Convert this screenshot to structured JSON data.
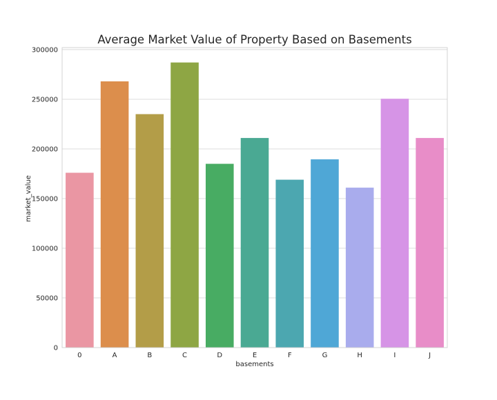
{
  "chart_data": {
    "type": "bar",
    "title": "Average Market Value of Property Based on Basements",
    "xlabel": "basements",
    "ylabel": "market_value",
    "categories": [
      "0",
      "A",
      "B",
      "C",
      "D",
      "E",
      "F",
      "G",
      "H",
      "I",
      "J"
    ],
    "values": [
      176000,
      268000,
      235000,
      287000,
      185000,
      211000,
      169000,
      189500,
      161000,
      250500,
      211000
    ],
    "ylim": [
      0,
      302000
    ],
    "yticks": [
      0,
      50000,
      100000,
      150000,
      200000,
      250000,
      300000
    ],
    "ytick_labels": [
      "0",
      "50000",
      "100000",
      "150000",
      "200000",
      "250000",
      "300000"
    ],
    "colors": [
      "#ea96a3",
      "#dc8e4c",
      "#b39d48",
      "#8ea644",
      "#48ac63",
      "#4aa993",
      "#4ca7b0",
      "#4fa7d6",
      "#a9aced",
      "#d694e6",
      "#e88dc8"
    ],
    "grid": true,
    "legend": "none"
  }
}
